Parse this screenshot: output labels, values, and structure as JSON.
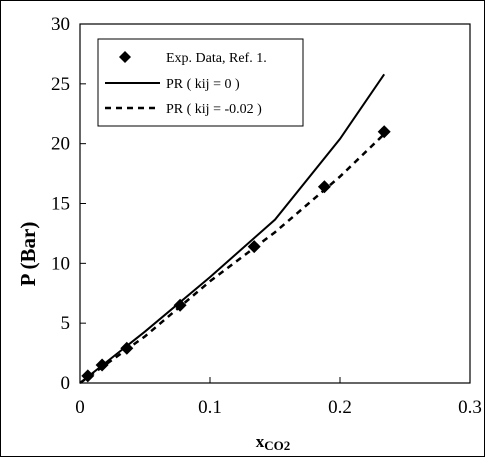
{
  "chart_data": {
    "type": "scatter",
    "xlabel": "x",
    "xlabel_sub": "CO2",
    "ylabel": "P  (Bar)",
    "xlim": [
      0,
      0.3
    ],
    "ylim": [
      0,
      30
    ],
    "xticks": [
      "0",
      "0.1",
      "0.2",
      "0.3"
    ],
    "yticks": [
      "0",
      "5",
      "10",
      "15",
      "20",
      "25",
      "30"
    ],
    "grid": false,
    "legend_position": "top-left",
    "series": [
      {
        "name": "Exp. Data, Ref. 1.",
        "style": "markers",
        "marker": "diamond",
        "x": [
          0.006,
          0.017,
          0.036,
          0.077,
          0.134,
          0.188,
          0.234
        ],
        "y": [
          0.6,
          1.5,
          2.9,
          6.5,
          11.4,
          16.4,
          21.0
        ]
      },
      {
        "name": "PR ( kij = 0 )",
        "style": "solid",
        "x": [
          0.0,
          0.05,
          0.1,
          0.15,
          0.2,
          0.234
        ],
        "y": [
          0.0,
          4.3,
          8.85,
          13.65,
          20.4,
          25.8
        ]
      },
      {
        "name": "PR ( kij = -0.02 )",
        "style": "dashed",
        "x": [
          0.0,
          0.05,
          0.1,
          0.15,
          0.2,
          0.234
        ],
        "y": [
          0.0,
          3.9,
          8.5,
          12.6,
          17.25,
          20.8
        ]
      }
    ]
  },
  "colors": {
    "ink": "#000000",
    "background": "#ffffff"
  }
}
